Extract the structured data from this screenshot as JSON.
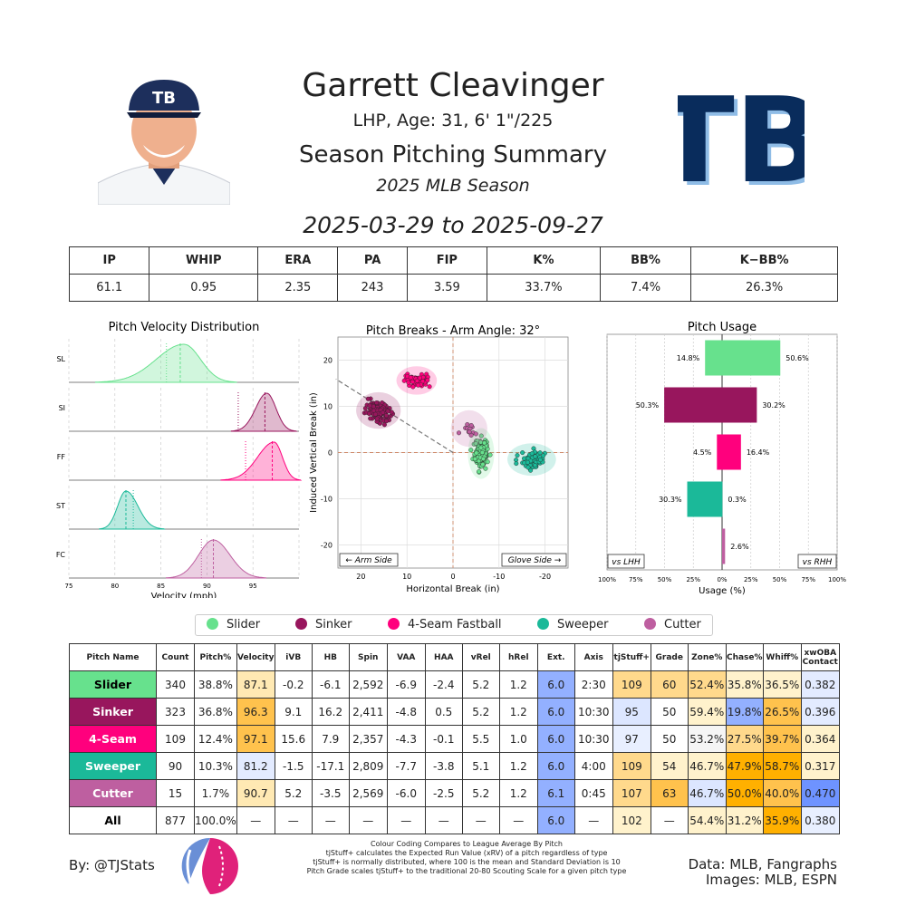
{
  "header": {
    "name": "Garrett Cleavinger",
    "info": "LHP, Age: 31, 6' 1\"/225",
    "title": "Season Pitching Summary",
    "season": "2025 MLB Season",
    "dates": "2025-03-29 to 2025-09-27",
    "logo_text": "TB"
  },
  "stats": {
    "headers": [
      "IP",
      "WHIP",
      "ERA",
      "PA",
      "FIP",
      "K%",
      "BB%",
      "K−BB%"
    ],
    "values": [
      "61.1",
      "0.95",
      "2.35",
      "243",
      "3.59",
      "33.7%",
      "7.4%",
      "26.3%"
    ]
  },
  "colors": {
    "Slider": "#67e18d",
    "Sinker": "#98165d",
    "4-Seam Fastball": "#ff007d",
    "Sweeper": "#1bb999",
    "Cutter": "#be5fa0",
    "heat_high": "#ffb000",
    "heat_mid_high": "#ffd98c",
    "heat_light": "#fff2cc",
    "heat_neutral": "#f5f5f5",
    "heat_cold_light": "#dce6ff",
    "heat_cold": "#6e93ff",
    "heat_cold_mid": "#93b0ff"
  },
  "chart_data": [
    {
      "type": "area",
      "title": "Pitch Velocity Distribution",
      "xlabel": "Velocity (mph)",
      "xlim": [
        75,
        100
      ],
      "xticks": [
        75,
        80,
        85,
        90,
        95
      ],
      "series": [
        {
          "name": "SL",
          "pitch": "Slider",
          "peak": 87.5,
          "spread_left": 3.0,
          "spread_right": 1.8,
          "mean": 87.1,
          "league_mean": 85.6
        },
        {
          "name": "SI",
          "pitch": "Sinker",
          "peak": 96.5,
          "spread_left": 1.2,
          "spread_right": 1.0,
          "mean": 96.3,
          "league_mean": 93.4
        },
        {
          "name": "FF",
          "pitch": "4-Seam Fastball",
          "peak": 97.3,
          "spread_left": 1.8,
          "spread_right": 0.9,
          "mean": 97.1,
          "league_mean": 94.2
        },
        {
          "name": "ST",
          "pitch": "Sweeper",
          "peak": 81.2,
          "spread_left": 0.9,
          "spread_right": 1.3,
          "mean": 81.2,
          "league_mean": 82.0
        },
        {
          "name": "FC",
          "pitch": "Cutter",
          "peak": 90.7,
          "spread_left": 1.6,
          "spread_right": 1.8,
          "mean": 90.7,
          "league_mean": 89.4
        }
      ]
    },
    {
      "type": "scatter",
      "title": "Pitch Breaks - Arm Angle: 32°",
      "xlabel": "Horizontal Break (in)",
      "ylabel": "Induced Vertical Break (in)",
      "xlim": [
        25,
        -25
      ],
      "ylim": [
        -25,
        25
      ],
      "xticks": [
        20,
        10,
        0,
        -10,
        -20
      ],
      "yticks": [
        20,
        10,
        0,
        -10,
        -20
      ],
      "arm_side_label": "← Arm Side",
      "glove_side_label": "Glove Side →",
      "arm_angle": 32,
      "clusters": [
        {
          "pitch": "Sinker",
          "x": 16.2,
          "y": 9.1,
          "sx": 2.2,
          "sy": 1.8,
          "n": 120
        },
        {
          "pitch": "4-Seam Fastball",
          "x": 7.9,
          "y": 15.6,
          "sx": 2.0,
          "sy": 1.4,
          "n": 60
        },
        {
          "pitch": "Slider",
          "x": -6.1,
          "y": -0.2,
          "sx": 1.3,
          "sy": 2.5,
          "n": 140
        },
        {
          "pitch": "Sweeper",
          "x": -17.1,
          "y": -1.5,
          "sx": 2.4,
          "sy": 1.6,
          "n": 70
        },
        {
          "pitch": "Cutter",
          "x": -3.5,
          "y": 5.2,
          "sx": 1.8,
          "sy": 1.8,
          "n": 12
        }
      ]
    },
    {
      "type": "bar",
      "title": "Pitch Usage",
      "xlabel": "Usage (%)",
      "xlim": [
        -100,
        100
      ],
      "xtick_labels": [
        "100%",
        "75%",
        "50%",
        "25%",
        "0%",
        "25%",
        "50%",
        "75%",
        "100%"
      ],
      "vs_left_label": "vs LHH",
      "vs_right_label": "vs RHH",
      "categories": [
        "Slider",
        "Sinker",
        "4-Seam Fastball",
        "Sweeper",
        "Cutter"
      ],
      "series": [
        {
          "name": "vs LHH",
          "values": [
            14.8,
            50.3,
            4.5,
            30.3,
            0.0
          ]
        },
        {
          "name": "vs RHH",
          "values": [
            50.6,
            30.2,
            16.4,
            0.3,
            2.6
          ]
        }
      ],
      "labels_lhh": [
        "14.8%",
        "50.3%",
        "4.5%",
        "30.3%",
        ""
      ],
      "labels_rhh": [
        "50.6%",
        "30.2%",
        "16.4%",
        "0.3%",
        "2.6%"
      ]
    }
  ],
  "legend": [
    "Slider",
    "Sinker",
    "4-Seam Fastball",
    "Sweeper",
    "Cutter"
  ],
  "pitch_table": {
    "headers": [
      "Pitch Name",
      "Count",
      "Pitch%",
      "Velocity",
      "iVB",
      "HB",
      "Spin",
      "VAA",
      "HAA",
      "vRel",
      "hRel",
      "Ext.",
      "Axis",
      "tjStuff+",
      "Grade",
      "Zone%",
      "Chase%",
      "Whiff%",
      "xwOBA Contact"
    ],
    "widths": [
      96,
      42,
      42,
      42,
      41,
      41,
      42,
      42,
      41,
      41,
      42,
      41,
      42,
      42,
      41,
      42,
      41,
      42,
      42
    ],
    "rows": [
      {
        "name": "Slider",
        "bg": "#67e18d",
        "fg": "#000000",
        "cells": [
          "340",
          "38.8%",
          "87.1",
          "-0.2",
          "-6.1",
          "2,592",
          "-6.9",
          "-2.4",
          "5.2",
          "1.2",
          "6.0",
          "2:30",
          "109",
          "60",
          "52.4%",
          "35.8%",
          "36.5%",
          "0.382"
        ],
        "heat": [
          "",
          "",
          "#ffe9b3",
          "",
          "",
          "",
          "",
          "",
          "",
          "",
          "#93b0ff",
          "",
          "#ffd98c",
          "#ffd98c",
          "#ffd98c",
          "#fff2cc",
          "#fff2cc",
          "#e3ebff"
        ]
      },
      {
        "name": "Sinker",
        "bg": "#98165d",
        "fg": "#ffffff",
        "cells": [
          "323",
          "36.8%",
          "96.3",
          "9.1",
          "16.2",
          "2,411",
          "-4.8",
          "0.5",
          "5.2",
          "1.2",
          "6.0",
          "10:30",
          "95",
          "50",
          "59.4%",
          "19.8%",
          "26.5%",
          "0.396"
        ],
        "heat": [
          "",
          "",
          "#ffc24d",
          "",
          "",
          "",
          "",
          "",
          "",
          "",
          "#93b0ff",
          "",
          "#dce6ff",
          "",
          "#fff2cc",
          "#93b0ff",
          "#ffc24d",
          "#e3ebff"
        ]
      },
      {
        "name": "4-Seam",
        "bg": "#ff007d",
        "fg": "#ffffff",
        "cells": [
          "109",
          "12.4%",
          "97.1",
          "15.6",
          "7.9",
          "2,357",
          "-4.3",
          "-0.1",
          "5.5",
          "1.0",
          "6.0",
          "10:30",
          "97",
          "50",
          "53.2%",
          "27.5%",
          "39.7%",
          "0.364"
        ],
        "heat": [
          "",
          "",
          "#ffc24d",
          "",
          "",
          "",
          "",
          "",
          "",
          "",
          "#93b0ff",
          "",
          "#e8efff",
          "",
          "#f5f5f5",
          "#ffd98c",
          "#ffc24d",
          "#fff2cc"
        ]
      },
      {
        "name": "Sweeper",
        "bg": "#1bb999",
        "fg": "#ffffff",
        "cells": [
          "90",
          "10.3%",
          "81.2",
          "-1.5",
          "-17.1",
          "2,809",
          "-7.7",
          "-3.8",
          "5.1",
          "1.2",
          "6.0",
          "4:00",
          "109",
          "54",
          "46.7%",
          "47.9%",
          "58.7%",
          "0.317"
        ],
        "heat": [
          "",
          "",
          "#e3ebff",
          "",
          "",
          "",
          "",
          "",
          "",
          "",
          "#93b0ff",
          "",
          "#ffd98c",
          "#fff2cc",
          "#fff2cc",
          "#ffb000",
          "#ffb000",
          "#fff2cc"
        ]
      },
      {
        "name": "Cutter",
        "bg": "#be5fa0",
        "fg": "#ffffff",
        "cells": [
          "15",
          "1.7%",
          "90.7",
          "5.2",
          "-3.5",
          "2,569",
          "-6.0",
          "-2.5",
          "5.2",
          "1.2",
          "6.1",
          "0:45",
          "107",
          "63",
          "46.7%",
          "50.0%",
          "40.0%",
          "0.470"
        ],
        "heat": [
          "",
          "",
          "#ffe9b3",
          "",
          "",
          "",
          "",
          "",
          "",
          "",
          "#93b0ff",
          "",
          "#ffd98c",
          "#ffc24d",
          "#dce6ff",
          "#ffb000",
          "#ffc24d",
          "#6e93ff"
        ]
      },
      {
        "name": "All",
        "bg": "#ffffff",
        "fg": "#000000",
        "cells": [
          "877",
          "100.0%",
          "—",
          "—",
          "—",
          "—",
          "—",
          "—",
          "—",
          "—",
          "6.0",
          "—",
          "102",
          "—",
          "54.4%",
          "31.2%",
          "35.9%",
          "0.380"
        ],
        "heat": [
          "",
          "",
          "",
          "",
          "",
          "",
          "",
          "",
          "",
          "",
          "#93b0ff",
          "",
          "#fff2cc",
          "",
          "#fff2cc",
          "#fff2cc",
          "#ffb000",
          "#e8efff"
        ]
      }
    ]
  },
  "footer": {
    "byline": "By: @TJStats",
    "notes": [
      "Colour Coding Compares to League Average By Pitch",
      "tjStuff+ calculates the Expected Run Value (xRV) of a pitch regardless of type",
      "tjStuff+ is normally distributed, where 100 is the mean and Standard Deviation is 10",
      "Pitch Grade scales tjStuff+ to the traditional 20-80 Scouting Scale for a given pitch type"
    ],
    "source": "Data: MLB, Fangraphs",
    "images": "Images: MLB, ESPN"
  }
}
